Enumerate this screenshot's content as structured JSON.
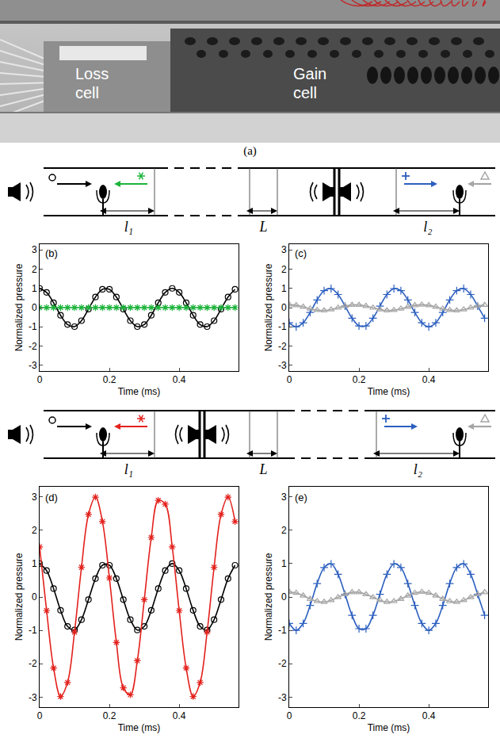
{
  "photo": {
    "labels": [
      "Loss cell",
      "Gain cell"
    ],
    "caption": "(a)"
  },
  "diagrams": [
    {
      "dimensions": [
        "l₁",
        "L",
        "l₂"
      ]
    },
    {
      "dimensions": [
        "l₁",
        "L",
        "l₂"
      ]
    }
  ],
  "chart_data": [
    {
      "type": "line",
      "title": "(b)",
      "xlabel": "Time (ms)",
      "ylabel": "Normalized pressure",
      "x": [
        0,
        0.02,
        0.04,
        0.06,
        0.08,
        0.1,
        0.12,
        0.14,
        0.16,
        0.18,
        0.2,
        0.22,
        0.24,
        0.26,
        0.28,
        0.3,
        0.32,
        0.34,
        0.36,
        0.38,
        0.4,
        0.42,
        0.44,
        0.46,
        0.48,
        0.5,
        0.52,
        0.54,
        0.56
      ],
      "series": [
        {
          "color": "#000000",
          "marker": "circle",
          "values": [
            1,
            0.79,
            0.25,
            -0.4,
            -0.88,
            -0.99,
            -0.68,
            -0.08,
            0.55,
            0.95,
            0.95,
            0.55,
            -0.08,
            -0.68,
            -0.99,
            -0.88,
            -0.4,
            0.25,
            0.79,
            1,
            0.79,
            0.25,
            -0.4,
            -0.88,
            -0.99,
            -0.68,
            -0.08,
            0.55,
            0.95
          ]
        },
        {
          "color": "#1db33b",
          "marker": "asterisk",
          "values": [
            0,
            0,
            0,
            0,
            0,
            0,
            0,
            0,
            0,
            0,
            0,
            0,
            0,
            0,
            0,
            0,
            0,
            0,
            0,
            0,
            0,
            0,
            0,
            0,
            0,
            0,
            0,
            0,
            0
          ]
        }
      ],
      "xlim": [
        0,
        0.57
      ],
      "ylim": [
        -3.3,
        3.3
      ],
      "xticks": [
        0,
        0.2,
        0.4
      ],
      "yticks": [
        -3,
        -2,
        -1,
        0,
        1,
        2,
        3
      ]
    },
    {
      "type": "line",
      "title": "(c)",
      "xlabel": "Time (ms)",
      "ylabel": "Normalized pressure",
      "x": [
        0,
        0.02,
        0.04,
        0.06,
        0.08,
        0.1,
        0.12,
        0.14,
        0.16,
        0.18,
        0.2,
        0.22,
        0.24,
        0.26,
        0.28,
        0.3,
        0.32,
        0.34,
        0.36,
        0.38,
        0.4,
        0.42,
        0.44,
        0.46,
        0.48,
        0.5,
        0.52,
        0.54,
        0.56
      ],
      "series": [
        {
          "color": "#2c5fbf",
          "marker": "cross",
          "values": [
            -0.79,
            -1,
            -0.79,
            -0.25,
            0.4,
            0.88,
            0.99,
            0.68,
            0.08,
            -0.55,
            -0.95,
            -0.95,
            -0.55,
            0.08,
            0.68,
            0.99,
            0.88,
            0.4,
            -0.25,
            -0.79,
            -1,
            -0.79,
            -0.25,
            0.4,
            0.88,
            0.99,
            0.68,
            0.08,
            -0.55
          ]
        },
        {
          "color": "#a6a6a6",
          "marker": "triangle",
          "values": [
            0.15,
            0.12,
            0.04,
            -0.06,
            -0.13,
            -0.15,
            -0.1,
            -0.01,
            0.08,
            0.14,
            0.14,
            0.08,
            -0.01,
            -0.1,
            -0.15,
            -0.13,
            -0.06,
            0.04,
            0.12,
            0.15,
            0.12,
            0.04,
            -0.06,
            -0.13,
            -0.15,
            -0.1,
            -0.01,
            0.08,
            0.14
          ]
        }
      ],
      "xlim": [
        0,
        0.57
      ],
      "ylim": [
        -3.3,
        3.3
      ],
      "xticks": [
        0,
        0.2,
        0.4
      ],
      "yticks": [
        -3,
        -2,
        -1,
        0,
        1,
        2,
        3
      ]
    },
    {
      "type": "line",
      "title": "(d)",
      "xlabel": "Time (ms)",
      "ylabel": "Normalized pressure",
      "x": [
        0,
        0.02,
        0.04,
        0.06,
        0.08,
        0.1,
        0.12,
        0.14,
        0.16,
        0.18,
        0.2,
        0.22,
        0.24,
        0.26,
        0.28,
        0.3,
        0.32,
        0.34,
        0.36,
        0.38,
        0.4,
        0.42,
        0.44,
        0.46,
        0.48,
        0.5,
        0.52,
        0.54,
        0.56
      ],
      "series": [
        {
          "color": "#000000",
          "marker": "circle",
          "values": [
            1,
            0.79,
            0.25,
            -0.4,
            -0.88,
            -0.99,
            -0.68,
            -0.08,
            0.55,
            0.95,
            0.95,
            0.55,
            -0.08,
            -0.68,
            -0.99,
            -0.88,
            -0.4,
            0.25,
            0.79,
            1,
            0.79,
            0.25,
            -0.4,
            -0.88,
            -0.99,
            -0.68,
            -0.08,
            0.55,
            0.95
          ]
        },
        {
          "color": "#e3211c",
          "marker": "asterisk",
          "values": [
            1.5,
            -0.41,
            -2.13,
            -2.98,
            -2.56,
            -1.05,
            0.89,
            2.47,
            2.99,
            2.26,
            0.57,
            -1.36,
            -2.72,
            -2.93,
            -1.91,
            -0.08,
            1.78,
            2.89,
            2.78,
            1.5,
            -0.41,
            -2.13,
            -2.98,
            -2.56,
            -1.05,
            0.89,
            2.47,
            2.99,
            2.26
          ]
        }
      ],
      "xlim": [
        0,
        0.57
      ],
      "ylim": [
        -3.3,
        3.3
      ],
      "xticks": [
        0,
        0.2,
        0.4
      ],
      "yticks": [
        -3,
        -2,
        -1,
        0,
        1,
        2,
        3
      ]
    },
    {
      "type": "line",
      "title": "(e)",
      "xlabel": "Time (ms)",
      "ylabel": "Normalized pressure",
      "x": [
        0,
        0.02,
        0.04,
        0.06,
        0.08,
        0.1,
        0.12,
        0.14,
        0.16,
        0.18,
        0.2,
        0.22,
        0.24,
        0.26,
        0.28,
        0.3,
        0.32,
        0.34,
        0.36,
        0.38,
        0.4,
        0.42,
        0.44,
        0.46,
        0.48,
        0.5,
        0.52,
        0.54,
        0.56
      ],
      "series": [
        {
          "color": "#2c5fbf",
          "marker": "cross",
          "values": [
            -0.79,
            -1,
            -0.79,
            -0.25,
            0.4,
            0.88,
            0.99,
            0.68,
            0.08,
            -0.55,
            -0.95,
            -0.95,
            -0.55,
            0.08,
            0.68,
            0.99,
            0.88,
            0.4,
            -0.25,
            -0.79,
            -1,
            -0.79,
            -0.25,
            0.4,
            0.88,
            0.99,
            0.68,
            0.08,
            -0.55
          ]
        },
        {
          "color": "#a6a6a6",
          "marker": "triangle",
          "values": [
            0.15,
            0.12,
            0.04,
            -0.06,
            -0.13,
            -0.15,
            -0.1,
            -0.01,
            0.08,
            0.14,
            0.14,
            0.08,
            -0.01,
            -0.1,
            -0.15,
            -0.13,
            -0.06,
            0.04,
            0.12,
            0.15,
            0.12,
            0.04,
            -0.06,
            -0.13,
            -0.15,
            -0.1,
            -0.01,
            0.08,
            0.14
          ]
        }
      ],
      "xlim": [
        0,
        0.57
      ],
      "ylim": [
        -3.3,
        3.3
      ],
      "xticks": [
        0,
        0.2,
        0.4
      ],
      "yticks": [
        -3,
        -2,
        -1,
        0,
        1,
        2,
        3
      ]
    }
  ]
}
